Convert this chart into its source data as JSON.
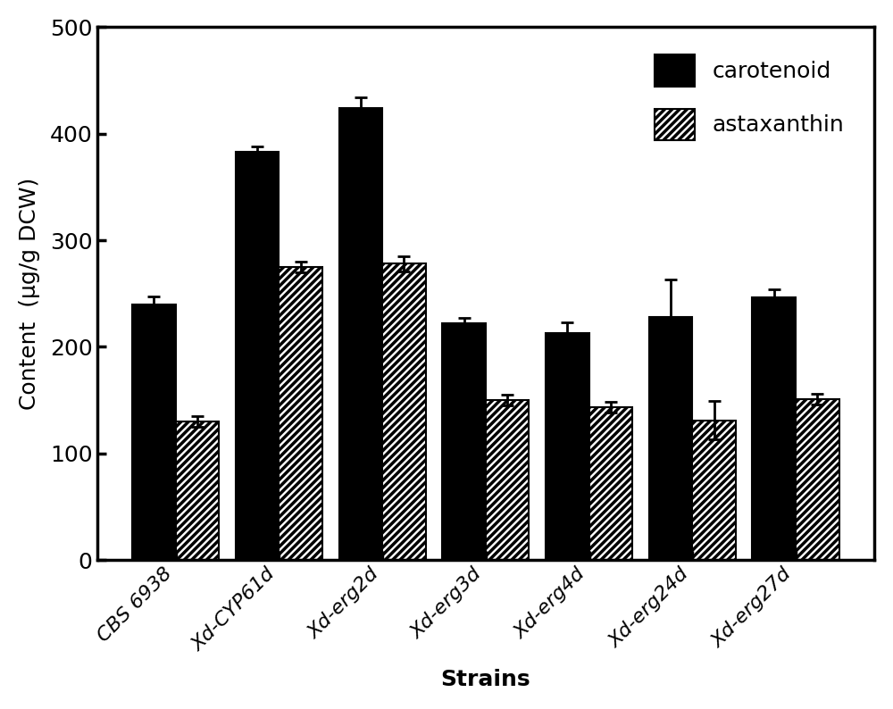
{
  "categories": [
    "CBS 6938",
    "Xd-CYP61d",
    "Xd-erg2d",
    "Xd-erg3d",
    "Xd-erg4d",
    "Xd-erg24d",
    "Xd-erg27d"
  ],
  "carotenoid_values": [
    240,
    383,
    424,
    222,
    213,
    228,
    246
  ],
  "astaxanthin_values": [
    130,
    275,
    278,
    150,
    143,
    131,
    151
  ],
  "carotenoid_errors": [
    7,
    5,
    10,
    5,
    10,
    35,
    8
  ],
  "astaxanthin_errors": [
    5,
    5,
    7,
    5,
    5,
    18,
    5
  ],
  "ylabel": "Content  (μg/g DCW)",
  "xlabel": "Strains",
  "ylim": [
    0,
    500
  ],
  "yticks": [
    0,
    100,
    200,
    300,
    400,
    500
  ],
  "bar_width": 0.42,
  "carotenoid_color": "#000000",
  "astaxanthin_color": "#ffffff",
  "hatch_pattern": "////",
  "legend_labels": [
    "carotenoid",
    "astaxanthin"
  ],
  "figure_width": 10.0,
  "figure_height": 7.94,
  "dpi": 100,
  "spine_linewidth": 2.5,
  "tick_fontsize": 18,
  "axis_label_fontsize": 18,
  "legend_fontsize": 18
}
